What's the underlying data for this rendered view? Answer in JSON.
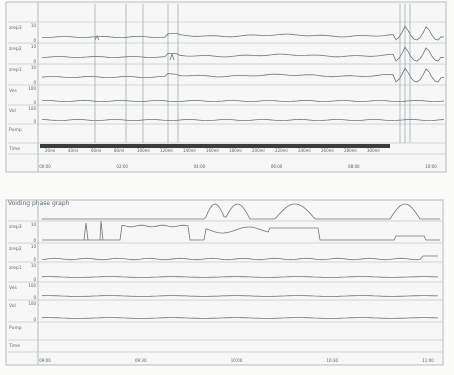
{
  "chart_data": [
    {
      "type": "line",
      "title": "",
      "channels": [
        {
          "name": "zrep3",
          "scale": [
            "10",
            "0"
          ]
        },
        {
          "name": "zrep2",
          "scale": [
            "10",
            "0"
          ]
        },
        {
          "name": "zrep1",
          "scale": [
            "10",
            "0"
          ]
        },
        {
          "name": "Ves",
          "scale": [
            "100",
            "0"
          ]
        },
        {
          "name": "Vol",
          "scale": [
            "100",
            "0"
          ]
        },
        {
          "name": "Pump",
          "scale": []
        },
        {
          "name": "Time",
          "scale": []
        }
      ],
      "time_ticks": [
        "00:00",
        "02:00",
        "04:00",
        "06:00",
        "08:00",
        "10:00"
      ],
      "pump_steps": [
        "20ml",
        "40ml",
        "60ml",
        "80ml",
        "100ml",
        "120ml",
        "140ml",
        "160ml",
        "180ml",
        "200ml",
        "220ml",
        "240ml",
        "260ml",
        "280ml",
        "300ml"
      ],
      "grid": true
    },
    {
      "type": "line",
      "title": "Voiding phase graph",
      "channels": [
        {
          "name": "zrep3",
          "scale": [
            "10",
            "0"
          ]
        },
        {
          "name": "zrep2",
          "scale": [
            "10",
            "0"
          ]
        },
        {
          "name": "zrep1",
          "scale": [
            "10",
            "0"
          ]
        },
        {
          "name": "Ves",
          "scale": [
            "100",
            "0"
          ]
        },
        {
          "name": "Vol",
          "scale": [
            "100",
            "0"
          ]
        },
        {
          "name": "Pump",
          "scale": []
        },
        {
          "name": "Time",
          "scale": []
        }
      ],
      "time_ticks": [
        "09:00",
        "09:30",
        "10:00",
        "10:30",
        "11:00"
      ],
      "grid": true
    }
  ]
}
